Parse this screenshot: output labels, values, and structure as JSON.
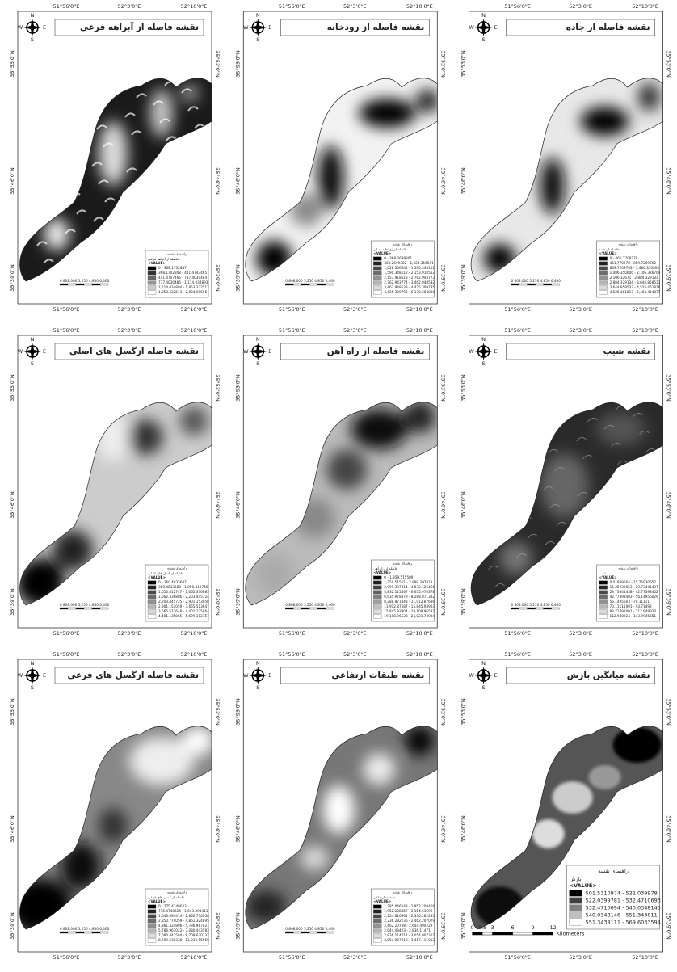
{
  "coords": {
    "lon": [
      "51°56'0\"E",
      "52°3'0\"E",
      "52°10'0\"E"
    ],
    "lat": [
      "35°53'0\"N",
      "35°46'0\"N",
      "35°39'0\"N"
    ]
  },
  "north": {
    "n": "N",
    "e": "E",
    "s": "S",
    "w": "W"
  },
  "legend_heading": "راهنمای نقشه",
  "legend_field": "<VALUE>",
  "panels": [
    {
      "title": "نقشه فاصله از آبراهه فرعی",
      "legend_name": "فاصله از آبراهه فرعی",
      "items": [
        "0 - 368.1702847",
        "368.1702848 - 441.4747465",
        "441.4747466 - 737.4030484",
        "737.4030485 - 1,114.034893",
        "1,114.034894 - 1,853.332512",
        "1,853.332513 - 2,894.98606"
      ],
      "scale": "0  808,000  5,250  4,850  6,460"
    },
    {
      "title": "نقشه فاصله از رودخانه",
      "legend_name": "فاصله از رودخانه اصلی",
      "items": [
        "0 - 368.2699301",
        "368.2699302 - 1,028.356641",
        "1,028.356642 - 1,590.348111",
        "1,590.348112 - 2,153.918512",
        "2,153.918513 - 2,762.943773",
        "2,762.943774 - 3,462.948532",
        "3,462.948533 - 4,425.309795",
        "4,425.309796 - 6,170.284888"
      ],
      "scale": "0  808,000  5,250  4,850  6,460"
    },
    {
      "title": "نقشه فاصله از جاده",
      "legend_name": "فاصله از جاده",
      "items": [
        "0 - 461.7709779",
        "461.770978 - 869.7209762",
        "869.7209763 - 1,486.350005",
        "1,486.350006 - 2,106.326709",
        "2,106.32671 - 2,884.329133",
        "2,884.329134 - 3,644.858531",
        "3,644.858532 - 4,525.461816",
        "4,525.461817 - 6,463.414877"
      ],
      "scale": "0  808,000  5,250  4,850  6,460"
    },
    {
      "title": "نقشه فاصله ازگسل های اصلی",
      "legend_name": "فاصله از گسل های اصلی",
      "items": [
        "0 - 360.4833687",
        "360.4833688 - 1,050.812746",
        "1,050.812747 - 1,662.336885",
        "1,662.336886 - 2,203.445724",
        "2,203.445725 - 2,901.153058",
        "2,901.153059 - 3,665.513647",
        "3,665.513648 - 4,401.135864",
        "4,401.135865 - 5,699.112357"
      ],
      "scale": "0  808,000  5,250  4,850  6,460"
    },
    {
      "title": "نقشه فاصله از راه آهن",
      "legend_name": "فاصله از راه آهن",
      "items": [
        "0 - 1,359.515509",
        "1,359.51551 - 2,999.397813",
        "2,999.397814 - 4,832.125466",
        "4,832.125467 - 6,635.978378",
        "6,635.978379 - 8,288.871342",
        "8,288.871343 - 11,912.87686",
        "11,912.87687 - 15,845.93903",
        "15,845.93904 - 19,108.96537",
        "19,108.96538 - 25,021.73984"
      ],
      "scale": "0  808,000  5,250  4,850  6,460"
    },
    {
      "title": "نقشه شیب",
      "legend_name": "شیب",
      "items": [
        "0.01809564 - 15.25930652",
        "15.25930653 - 29.73441437",
        "29.73441438 - 42.77393402",
        "42.77393403 - 56.14956029",
        "56.1495603 - 70.11111",
        "70.11111001 - 93.71492",
        "93.71492001 - 112.948923",
        "112.948924 - 143.9946651"
      ],
      "scale": "0  808,000  5,250  4,850  6,460"
    },
    {
      "title": "نقشه فاصله ازگسل های فرعی",
      "legend_name": "فاصله از گسل های فرعی",
      "items": [
        "0 - 775.4748623",
        "775.4748624 - 1,643.894413",
        "1,643.894414 - 2,850.770058",
        "2,850.770059 - 4,861.324895",
        "4,861.324896 - 5,786.967021",
        "5,786.967022 - 7,080.443583",
        "7,080.443584 - 8,709.630337",
        "8,709.630338 - 11,010.15569"
      ],
      "scale": "0  808,000  5,250  4,850  6,460"
    },
    {
      "title": "نقشه طبقات ارتفاعی",
      "legend_name": "طبقات ارتفاعی",
      "items": [
        "1,785.046243 - 1,952.208456",
        "1,952.208457 - 2,154.61696",
        "2,154.616961 - 2,336.282235",
        "2,336.282236 - 2,462.207079",
        "2,462.20708 - 2,644.494229",
        "2,644.49423 - 2,836.11471",
        "2,836.114711 - 3,054.007317",
        "3,054.007318 - 3,417.111913"
      ],
      "scale": "0  808,000  5,250  4,850  6,460"
    },
    {
      "title": "نقشه میانگین بارش",
      "legend_name": "بارش",
      "items": [
        "501.5310974 - 522.039978",
        "522.0399781 - 532.4710693",
        "532.4710694 - 540.0348145",
        "540.0348146 - 551.343811",
        "551.3438111 - 569.6033594"
      ],
      "scale_ticks": [
        "0",
        "1.5",
        "3",
        "6",
        "9",
        "12"
      ],
      "scale_unit": "Kilometers"
    }
  ]
}
